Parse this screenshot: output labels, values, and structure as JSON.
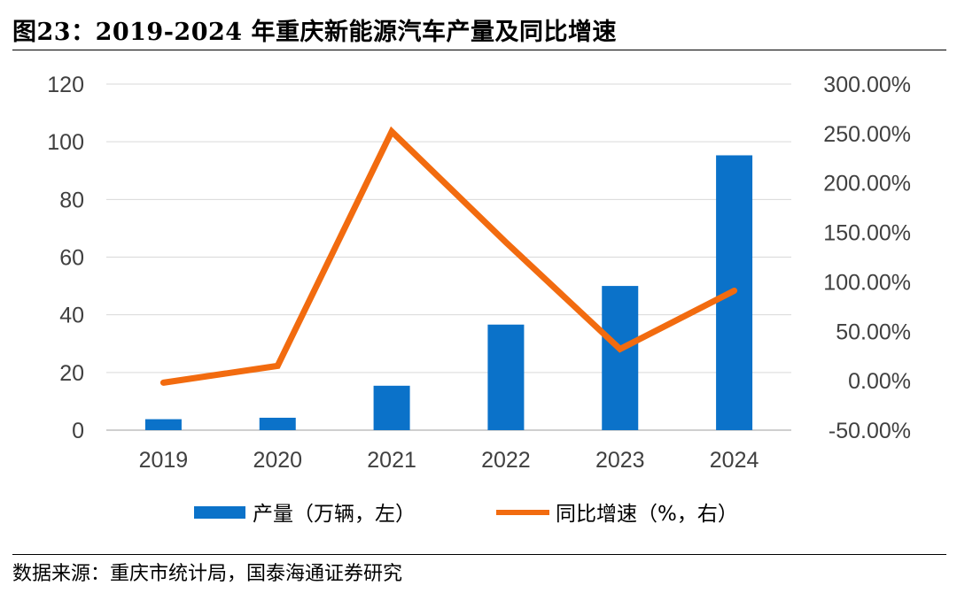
{
  "title": "图23：2019-2024 年重庆新能源汽车产量及同比增速",
  "source": "数据来源：重庆市统计局，国泰海通证券研究",
  "colors": {
    "bar": "#0b72c9",
    "line": "#f26b0f",
    "grid": "#d9d9d9",
    "axis": "#bfbfbf"
  },
  "chart_data": {
    "type": "bar+line",
    "categories": [
      "2019",
      "2020",
      "2021",
      "2022",
      "2023",
      "2024"
    ],
    "series": [
      {
        "name": "产量（万辆，左）",
        "type": "bar",
        "axis": "left",
        "values": [
          3.8,
          4.3,
          15.4,
          36.6,
          50.0,
          95.3
        ]
      },
      {
        "name": "同比增速（%，右）",
        "type": "line",
        "axis": "right",
        "values": [
          -2.0,
          15.0,
          252.0,
          140.0,
          32.0,
          91.0
        ]
      }
    ],
    "y_left": {
      "min": 0,
      "max": 120,
      "ticks": [
        "0",
        "20",
        "40",
        "60",
        "80",
        "100",
        "120"
      ]
    },
    "y_right": {
      "min": -50,
      "max": 300,
      "ticks": [
        "-50.00%",
        "0.00%",
        "50.00%",
        "100.00%",
        "150.00%",
        "200.00%",
        "250.00%",
        "300.00%"
      ]
    },
    "legend_position": "bottom"
  }
}
